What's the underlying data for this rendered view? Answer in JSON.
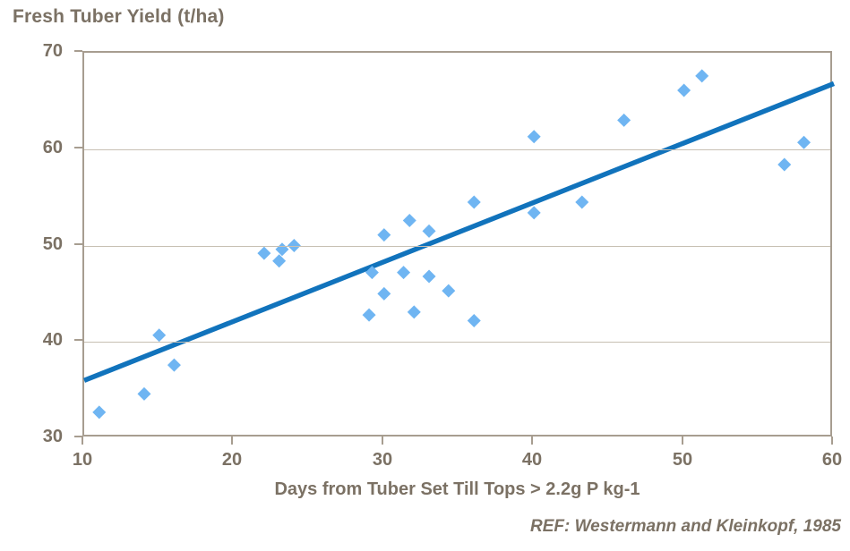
{
  "chart_data": {
    "type": "scatter",
    "title": "Fresh Tuber Yield (t/ha)",
    "xlabel": "Days from Tuber Set Till Tops > 2.2g P kg-1",
    "ylabel": "Fresh Tuber Yield (t/ha)",
    "xlim": [
      10,
      60
    ],
    "ylim": [
      30,
      70
    ],
    "xticks": [
      "10",
      "20",
      "30",
      "40",
      "50",
      "60"
    ],
    "yticks": [
      "30",
      "40",
      "50",
      "60",
      "70"
    ],
    "grid": "horizontal-only",
    "legend_position": "none",
    "marker": "diamond",
    "series": [
      {
        "name": "fresh-tuber-yield-points",
        "color": "#6FB5F2",
        "points": [
          [
            11,
            32.7
          ],
          [
            14,
            34.6
          ],
          [
            15,
            40.7
          ],
          [
            16,
            37.6
          ],
          [
            22,
            49.2
          ],
          [
            23,
            48.4
          ],
          [
            23.2,
            49.6
          ],
          [
            24,
            50.0
          ],
          [
            29,
            42.8
          ],
          [
            29.2,
            47.2
          ],
          [
            30,
            51.1
          ],
          [
            30,
            45.0
          ],
          [
            31.3,
            47.2
          ],
          [
            31.7,
            52.6
          ],
          [
            32,
            43.1
          ],
          [
            33,
            51.5
          ],
          [
            33,
            46.8
          ],
          [
            34.3,
            45.3
          ],
          [
            36,
            54.5
          ],
          [
            36,
            42.2
          ],
          [
            40,
            61.3
          ],
          [
            40,
            53.4
          ],
          [
            43.2,
            54.5
          ],
          [
            46,
            63.0
          ],
          [
            50,
            66.1
          ],
          [
            51.2,
            67.6
          ],
          [
            56.7,
            58.4
          ],
          [
            58,
            60.7
          ]
        ]
      }
    ],
    "trendline": {
      "x1": 10,
      "y1": 36.0,
      "x2": 60,
      "y2": 66.8,
      "color": "#1173BC"
    }
  },
  "footer": {
    "reference": "REF: Westermann and Kleinkopf, 1985"
  },
  "colors": {
    "point": "#6FB5F2",
    "trend_line": "#1173BC",
    "axis": "#A79D90",
    "grid": "#C7C0B3",
    "text": "#7B7164",
    "background": "#FFFFFF"
  }
}
